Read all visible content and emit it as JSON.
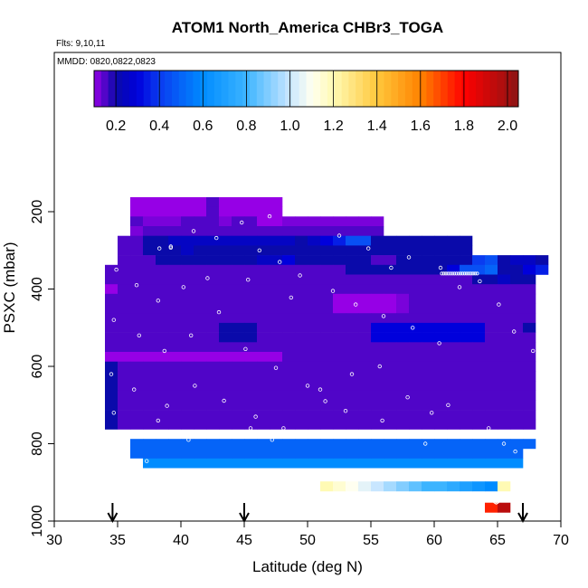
{
  "chart_data": {
    "type": "heatmap",
    "title": "ATOM1 North_America CHBr3_TOGA",
    "flights_note": "Flts: 9,10,11",
    "dates_note": "MMDD: 0820,0822,0823",
    "xlabel": "Latitude (deg N)",
    "ylabel": "PSXC (mbar)",
    "xlim": [
      30,
      70
    ],
    "ylim": [
      1000,
      100
    ],
    "x_ticks": [
      "30",
      "35",
      "40",
      "45",
      "50",
      "55",
      "60",
      "65",
      "70"
    ],
    "y_ticks": [
      "200",
      "400",
      "600",
      "800",
      "1000"
    ],
    "colorbar": {
      "range": [
        0.1,
        2.05
      ],
      "ticks": [
        "0.2",
        "0.4",
        "0.6",
        "0.8",
        "1.0",
        "1.2",
        "1.4",
        "1.6",
        "1.8",
        "2.0"
      ]
    },
    "arrows_lat": [
      34.6,
      45.0,
      67.0
    ],
    "grid_layout": {
      "lat_start": 30,
      "lat_step": 1,
      "p_start": 100,
      "p_step": 25,
      "rows": [
        "......................................................................",
        "......................................................................",
        "......................................................................",
        "......................................................................",
        "....................................aaaaaaaaaaaaaaaaaaaaaaaaaaaaa......",
        "....................................aaaaaaaaaaaaaaaaaaaaaaaaaaaaaaaaaaaaaaaaaa",
        "..................................bbbbbbbbbbbbbbbbbbbbbbbbbbbbbbbbbbbbbbbbbbbbbbbbbbbbbbbbbbbb",
        "..................................bbbbbbbbbbbbbbbbbbbbbbbbbbbbbbbbbbbbbbbbbbbbbbbbbbbbbbbbbbbbbbbbbbbbbbbb"
      ]
    },
    "cells": [
      {
        "p": 175,
        "lat": [
          36,
          48
        ],
        "v": [
          0.08,
          0.1,
          0.1,
          0.1,
          0.1,
          0.1,
          0.15,
          0.1,
          0.1,
          0.1,
          0.1,
          0.1
        ]
      },
      {
        "p": 200,
        "lat": [
          36,
          48
        ],
        "v": [
          0.08,
          0.1,
          0.1,
          0.1,
          0.1,
          0.1,
          0.15,
          0.1,
          0.1,
          0.1,
          0.1,
          0.1
        ]
      },
      {
        "p": 225,
        "lat": [
          36,
          48
        ],
        "v": [
          0.15,
          0.12,
          0.12,
          0.12,
          0.15,
          0.15,
          0.15,
          0.12,
          0.15,
          0.15,
          0.1,
          0.1
        ]
      },
      {
        "p": 225,
        "lat": [
          48,
          56
        ],
        "v": [
          0.12,
          0.12,
          0.12,
          0.12,
          0.12,
          0.12,
          0.12,
          0.12
        ]
      },
      {
        "p": 250,
        "lat": [
          36,
          56
        ],
        "v": [
          0.12,
          0.15,
          0.15,
          0.15,
          0.15,
          0.15,
          0.15,
          0.15,
          0.15,
          0.15,
          0.15,
          0.15,
          0.15,
          0.15,
          0.15,
          0.15,
          0.15,
          0.15,
          0.15,
          0.15
        ]
      },
      {
        "p": 275,
        "lat": [
          35,
          63
        ],
        "v": [
          0.15,
          0.15,
          0.2,
          0.2,
          0.25,
          0.25,
          0.25,
          0.25,
          0.25,
          0.25,
          0.25,
          0.25,
          0.25,
          0.25,
          0.2,
          0.25,
          0.3,
          0.35,
          0.45,
          0.45,
          0.2,
          0.2,
          0.2,
          0.2,
          0.2,
          0.2,
          0.2,
          0.2
        ]
      },
      {
        "p": 300,
        "lat": [
          35,
          63
        ],
        "v": [
          0.15,
          0.15,
          0.2,
          0.2,
          0.2,
          0.25,
          0.2,
          0.2,
          0.2,
          0.2,
          0.2,
          0.2,
          0.2,
          0.2,
          0.2,
          0.2,
          0.2,
          0.2,
          0.2,
          0.2,
          0.2,
          0.2,
          0.2,
          0.2,
          0.2,
          0.2,
          0.2,
          0.2
        ]
      },
      {
        "p": 325,
        "lat": [
          35,
          69
        ],
        "v": [
          0.15,
          0.15,
          0.15,
          0.2,
          0.2,
          0.2,
          0.2,
          0.2,
          0.2,
          0.2,
          0.2,
          0.25,
          0.25,
          0.3,
          0.2,
          0.2,
          0.2,
          0.2,
          0.2,
          0.2,
          0.15,
          0.15,
          0.2,
          0.2,
          0.2,
          0.2,
          0.2,
          0.2,
          0.4,
          0.45,
          0.2,
          0.25,
          0.25,
          0.2
        ]
      },
      {
        "p": 350,
        "lat": [
          34,
          69
        ],
        "v": [
          0.15,
          0.15,
          0.15,
          0.15,
          0.15,
          0.15,
          0.15,
          0.15,
          0.15,
          0.15,
          0.15,
          0.15,
          0.15,
          0.15,
          0.15,
          0.15,
          0.15,
          0.15,
          0.15,
          0.2,
          0.2,
          0.2,
          0.2,
          0.2,
          0.2,
          0.2,
          0.2,
          0.3,
          0.45,
          0.45,
          0.5,
          0.2,
          0.2,
          0.3,
          0.35
        ]
      },
      {
        "p": 375,
        "lat": [
          34,
          68
        ],
        "v": [
          0.15,
          0.15,
          0.15,
          0.15,
          0.15,
          0.15,
          0.15,
          0.15,
          0.15,
          0.15,
          0.15,
          0.15,
          0.15,
          0.15,
          0.15,
          0.15,
          0.15,
          0.15,
          0.15,
          0.15,
          0.15,
          0.15,
          0.15,
          0.15,
          0.15,
          0.15,
          0.15,
          0.15,
          0.15,
          0.2,
          0.2,
          0.25,
          0.2,
          0.2
        ]
      },
      {
        "p": 400,
        "lat": [
          34,
          68
        ],
        "v": [
          0.1,
          0.15,
          0.15,
          0.15,
          0.15,
          0.15,
          0.15,
          0.15,
          0.15,
          0.15,
          0.15,
          0.15,
          0.15,
          0.15,
          0.15,
          0.15,
          0.15,
          0.15,
          0.15,
          0.15,
          0.15,
          0.15,
          0.15,
          0.15,
          0.15,
          0.15,
          0.15,
          0.15,
          0.15,
          0.15,
          0.15,
          0.15,
          0.15,
          0.15
        ]
      },
      {
        "p": 425,
        "lat": [
          34,
          68
        ],
        "v": [
          0.15,
          0.15,
          0.15,
          0.15,
          0.15,
          0.15,
          0.15,
          0.15,
          0.15,
          0.15,
          0.15,
          0.15,
          0.15,
          0.15,
          0.15,
          0.15,
          0.15,
          0.15,
          0.08,
          0.08,
          0.08,
          0.08,
          0.1,
          0.12,
          0.15,
          0.15,
          0.15,
          0.15,
          0.15,
          0.15,
          0.15,
          0.15,
          0.15,
          0.15
        ]
      },
      {
        "p": 450,
        "lat": [
          34,
          68
        ],
        "v": [
          0.15,
          0.15,
          0.15,
          0.15,
          0.15,
          0.15,
          0.15,
          0.15,
          0.15,
          0.15,
          0.15,
          0.15,
          0.15,
          0.15,
          0.15,
          0.15,
          0.15,
          0.15,
          0.08,
          0.08,
          0.08,
          0.08,
          0.1,
          0.12,
          0.15,
          0.15,
          0.15,
          0.15,
          0.15,
          0.15,
          0.15,
          0.15,
          0.15,
          0.15
        ]
      },
      {
        "p": 475,
        "lat": [
          34,
          68
        ],
        "v": [
          0.15,
          0.15,
          0.15,
          0.15,
          0.15,
          0.15,
          0.15,
          0.15,
          0.15,
          0.15,
          0.15,
          0.15,
          0.15,
          0.15,
          0.15,
          0.15,
          0.15,
          0.15,
          0.15,
          0.15,
          0.15,
          0.15,
          0.15,
          0.15,
          0.15,
          0.15,
          0.15,
          0.15,
          0.15,
          0.15,
          0.15,
          0.15,
          0.15,
          0.15
        ]
      },
      {
        "p": 500,
        "lat": [
          34,
          68
        ],
        "v": [
          0.15,
          0.15,
          0.15,
          0.15,
          0.15,
          0.15,
          0.15,
          0.15,
          0.15,
          0.2,
          0.2,
          0.2,
          0.15,
          0.15,
          0.15,
          0.15,
          0.15,
          0.15,
          0.15,
          0.15,
          0.15,
          0.3,
          0.3,
          0.3,
          0.3,
          0.3,
          0.3,
          0.3,
          0.3,
          0.3,
          0.15,
          0.15,
          0.15,
          0.2
        ]
      },
      {
        "p": 525,
        "lat": [
          34,
          68
        ],
        "v": [
          0.15,
          0.15,
          0.15,
          0.15,
          0.15,
          0.15,
          0.15,
          0.15,
          0.15,
          0.2,
          0.2,
          0.2,
          0.15,
          0.15,
          0.15,
          0.15,
          0.15,
          0.15,
          0.15,
          0.15,
          0.15,
          0.3,
          0.3,
          0.3,
          0.3,
          0.3,
          0.3,
          0.3,
          0.3,
          0.3,
          0.15,
          0.15,
          0.15,
          0.15
        ]
      },
      {
        "p": 550,
        "lat": [
          34,
          68
        ],
        "v": [
          0.15,
          0.15,
          0.15,
          0.15,
          0.15,
          0.15,
          0.15,
          0.15,
          0.15,
          0.15,
          0.15,
          0.15,
          0.15,
          0.15,
          0.15,
          0.15,
          0.15,
          0.15,
          0.15,
          0.15,
          0.15,
          0.15,
          0.15,
          0.15,
          0.15,
          0.15,
          0.15,
          0.15,
          0.15,
          0.15,
          0.15,
          0.15,
          0.15,
          0.15
        ]
      },
      {
        "p": 575,
        "lat": [
          34,
          68
        ],
        "v": [
          0.1,
          0.1,
          0.1,
          0.1,
          0.1,
          0.1,
          0.1,
          0.1,
          0.1,
          0.1,
          0.1,
          0.1,
          0.1,
          0.1,
          0.15,
          0.15,
          0.15,
          0.15,
          0.15,
          0.15,
          0.15,
          0.15,
          0.15,
          0.15,
          0.15,
          0.15,
          0.15,
          0.15,
          0.15,
          0.15,
          0.15,
          0.15,
          0.15,
          0.15
        ]
      },
      {
        "p": 600,
        "lat": [
          34,
          68
        ],
        "v": [
          0.2,
          0.15,
          0.15,
          0.15,
          0.15,
          0.15,
          0.15,
          0.15,
          0.15,
          0.15,
          0.15,
          0.15,
          0.15,
          0.15,
          0.15,
          0.15,
          0.15,
          0.15,
          0.15,
          0.15,
          0.15,
          0.15,
          0.15,
          0.15,
          0.15,
          0.15,
          0.15,
          0.15,
          0.15,
          0.15,
          0.15,
          0.15,
          0.15,
          0.15
        ]
      },
      {
        "p": 625,
        "lat": [
          34,
          68
        ],
        "v": [
          0.2,
          0.15,
          0.15,
          0.15,
          0.15,
          0.15,
          0.15,
          0.15,
          0.15,
          0.15,
          0.15,
          0.15,
          0.15,
          0.15,
          0.15,
          0.15,
          0.15,
          0.15,
          0.15,
          0.15,
          0.15,
          0.15,
          0.15,
          0.15,
          0.15,
          0.15,
          0.15,
          0.15,
          0.15,
          0.15,
          0.15,
          0.15,
          0.15,
          0.15
        ]
      },
      {
        "p": 650,
        "lat": [
          34,
          68
        ],
        "v": [
          0.2,
          0.15,
          0.15,
          0.15,
          0.15,
          0.15,
          0.15,
          0.15,
          0.15,
          0.15,
          0.15,
          0.15,
          0.15,
          0.15,
          0.15,
          0.15,
          0.15,
          0.15,
          0.15,
          0.15,
          0.15,
          0.15,
          0.15,
          0.15,
          0.15,
          0.15,
          0.15,
          0.15,
          0.15,
          0.15,
          0.15,
          0.15,
          0.15,
          0.15
        ]
      },
      {
        "p": 675,
        "lat": [
          34,
          68
        ],
        "v": [
          0.2,
          0.15,
          0.15,
          0.15,
          0.15,
          0.15,
          0.15,
          0.15,
          0.15,
          0.15,
          0.15,
          0.15,
          0.15,
          0.15,
          0.15,
          0.15,
          0.15,
          0.15,
          0.15,
          0.15,
          0.15,
          0.15,
          0.15,
          0.15,
          0.15,
          0.15,
          0.15,
          0.15,
          0.15,
          0.15,
          0.15,
          0.15,
          0.15,
          0.15
        ]
      },
      {
        "p": 700,
        "lat": [
          34,
          68
        ],
        "v": [
          0.2,
          0.15,
          0.15,
          0.15,
          0.15,
          0.15,
          0.15,
          0.15,
          0.15,
          0.15,
          0.15,
          0.15,
          0.15,
          0.15,
          0.15,
          0.15,
          0.15,
          0.15,
          0.15,
          0.15,
          0.15,
          0.15,
          0.15,
          0.15,
          0.15,
          0.15,
          0.15,
          0.15,
          0.15,
          0.15,
          0.15,
          0.15,
          0.15,
          0.15
        ]
      },
      {
        "p": 725,
        "lat": [
          34,
          68
        ],
        "v": [
          0.2,
          0.15,
          0.15,
          0.15,
          0.15,
          0.15,
          0.15,
          0.15,
          0.15,
          0.15,
          0.15,
          0.15,
          0.15,
          0.15,
          0.15,
          0.15,
          0.15,
          0.15,
          0.15,
          0.15,
          0.15,
          0.15,
          0.15,
          0.15,
          0.15,
          0.15,
          0.15,
          0.15,
          0.15,
          0.15,
          0.15,
          0.15,
          0.15,
          0.15
        ]
      },
      {
        "p": 750,
        "lat": [
          34,
          68
        ],
        "v": [
          0.2,
          0.15,
          0.15,
          0.15,
          0.15,
          0.15,
          0.15,
          0.15,
          0.15,
          0.15,
          0.15,
          0.15,
          0.15,
          0.15,
          0.15,
          0.15,
          0.15,
          0.15,
          0.15,
          0.15,
          0.15,
          0.15,
          0.15,
          0.15,
          0.15,
          0.15,
          0.15,
          0.15,
          0.15,
          0.15,
          0.15,
          0.15,
          0.15,
          0.15
        ]
      }
    ]
  }
}
